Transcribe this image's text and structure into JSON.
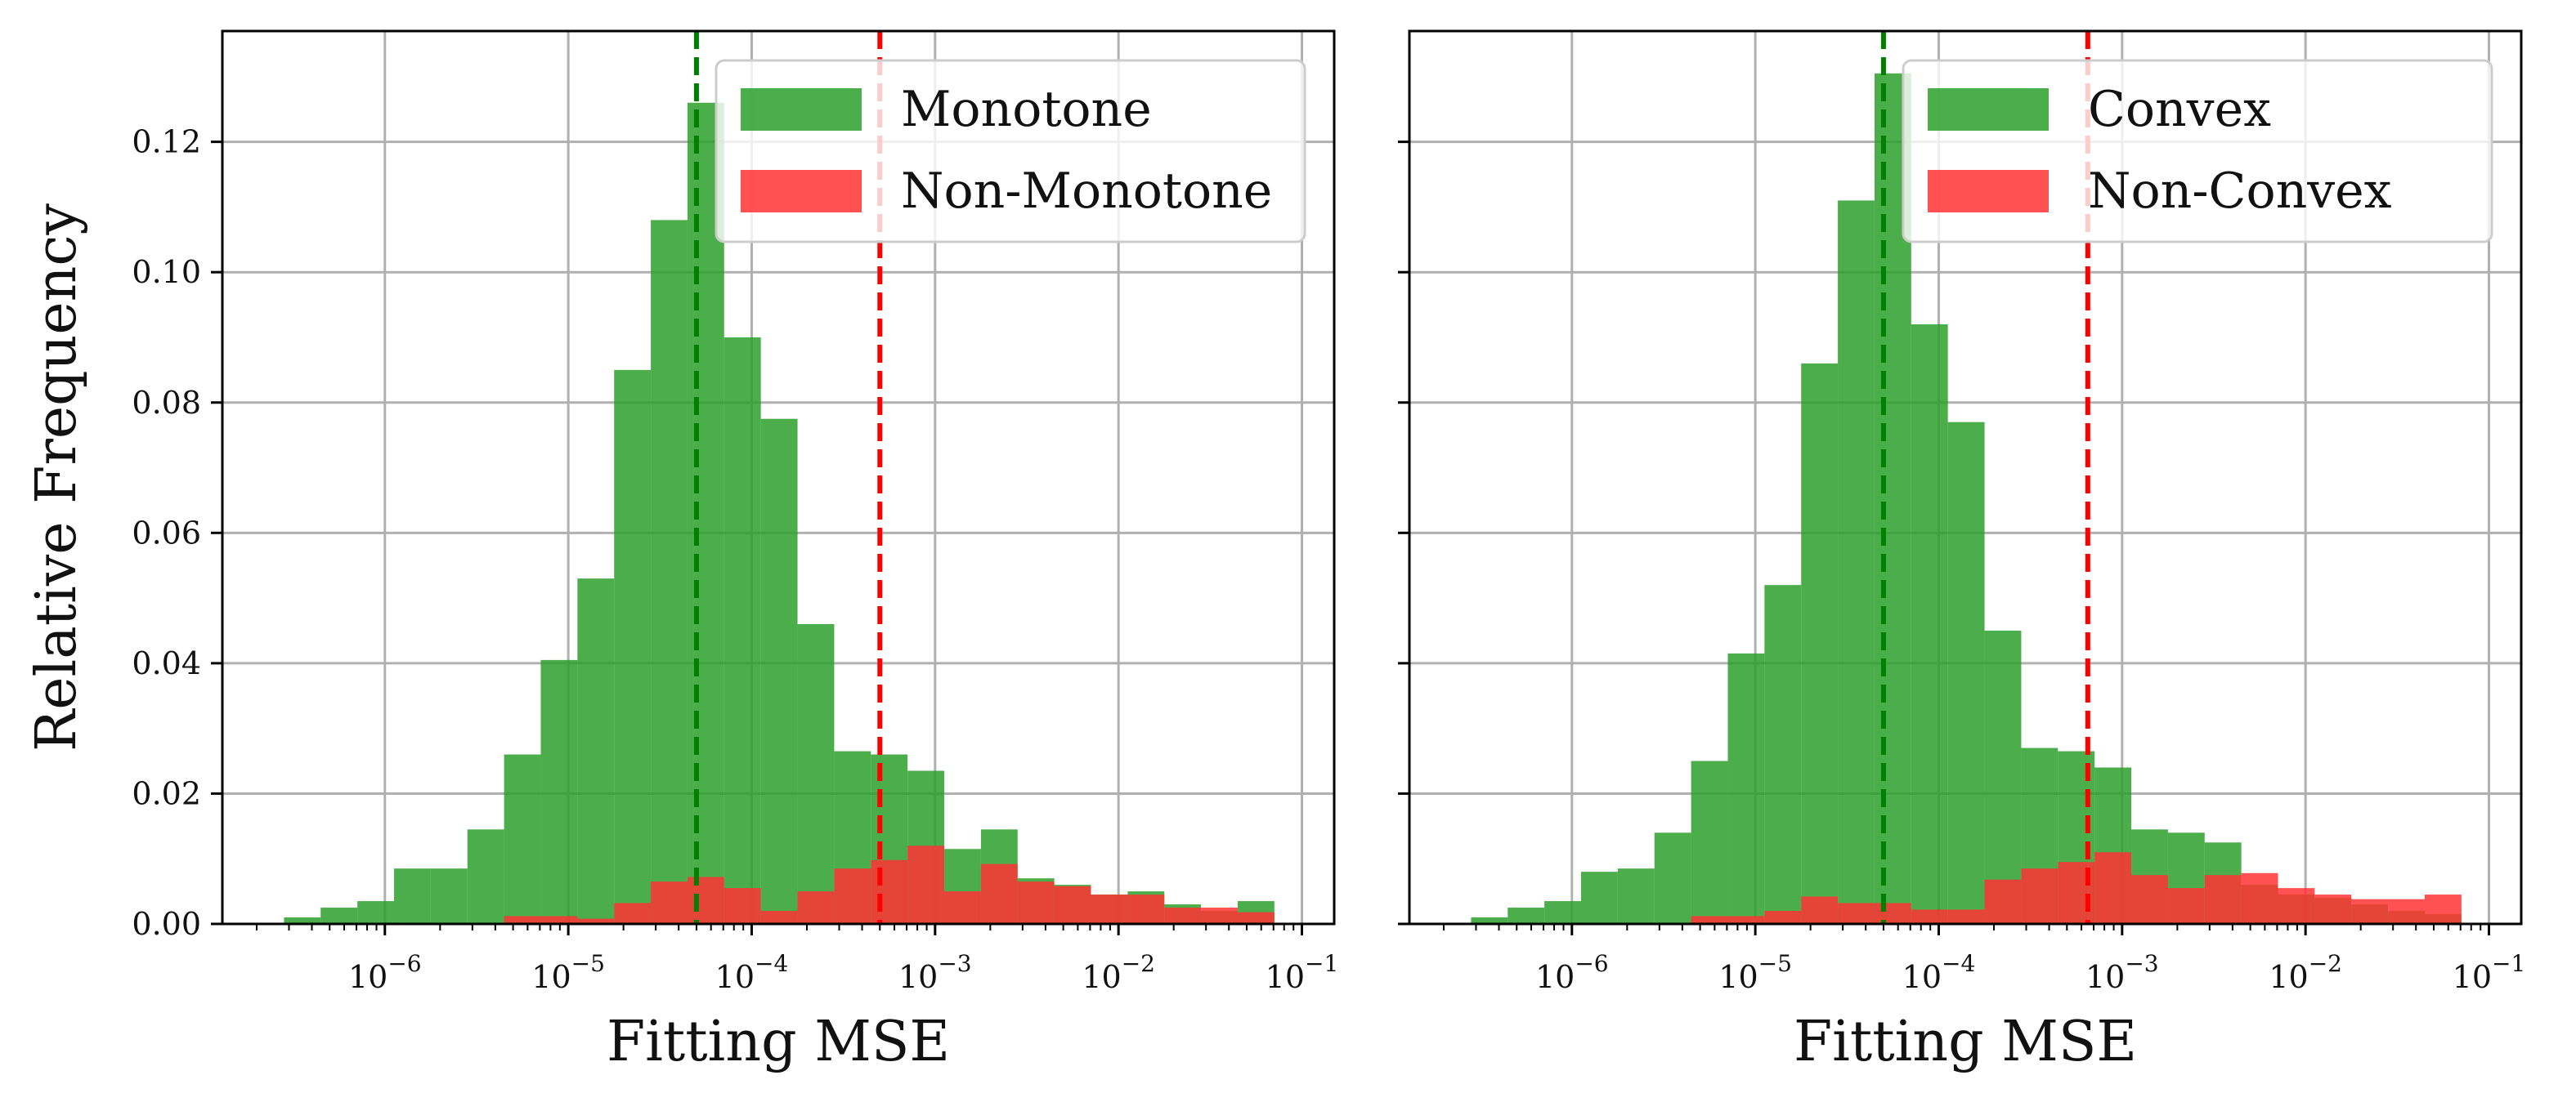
{
  "chart_data": [
    {
      "type": "histogram",
      "xlabel": "Fitting MSE",
      "ylabel": "Relative Frequency",
      "xscale": "log",
      "xlim": [
        1.3e-07,
        0.15
      ],
      "ylim": [
        0,
        0.137
      ],
      "yticks": [
        0.0,
        0.02,
        0.04,
        0.06,
        0.08,
        0.1,
        0.12
      ],
      "ytick_labels": [
        "0.00",
        "0.02",
        "0.04",
        "0.06",
        "0.08",
        "0.10",
        "0.12"
      ],
      "xtick_exponents": [
        -6,
        -5,
        -4,
        -3,
        -2,
        -1
      ],
      "xtick_base": "10",
      "grid": true,
      "legend_position": "upper right",
      "bin_edges_log10": [
        -6.55,
        -6.35,
        -6.15,
        -5.95,
        -5.75,
        -5.55,
        -5.35,
        -5.15,
        -4.95,
        -4.75,
        -4.55,
        -4.35,
        -4.15,
        -3.95,
        -3.75,
        -3.55,
        -3.35,
        -3.15,
        -2.95,
        -2.75,
        -2.55,
        -2.35,
        -2.15,
        -1.95,
        -1.75,
        -1.55,
        -1.35,
        -1.15
      ],
      "series": [
        {
          "name": "Monotone",
          "color": "#2ca02c",
          "values": [
            0.001,
            0.0025,
            0.0035,
            0.0085,
            0.0085,
            0.0145,
            0.026,
            0.0405,
            0.053,
            0.085,
            0.108,
            0.126,
            0.09,
            0.0775,
            0.046,
            0.0265,
            0.026,
            0.0235,
            0.0115,
            0.0145,
            0.007,
            0.006,
            0.0045,
            0.005,
            0.003,
            0.002,
            0.0035
          ]
        },
        {
          "name": "Non-Monotone",
          "color": "#ff3333",
          "values": [
            0,
            0,
            0,
            0,
            0,
            0,
            0.0012,
            0.0012,
            0.0008,
            0.0032,
            0.0065,
            0.0072,
            0.0055,
            0.002,
            0.005,
            0.0085,
            0.0098,
            0.012,
            0.005,
            0.0092,
            0.0065,
            0.0058,
            0.0045,
            0.0045,
            0.0025,
            0.0025,
            0.0018
          ]
        }
      ],
      "vlines": [
        {
          "x": 5e-05,
          "color": "#008000",
          "series": "Monotone"
        },
        {
          "x": 0.0005,
          "color": "#ff0000",
          "series": "Non-Monotone"
        }
      ]
    },
    {
      "type": "histogram",
      "xlabel": "Fitting MSE",
      "ylabel": "",
      "xscale": "log",
      "xlim": [
        1.3e-07,
        0.15
      ],
      "ylim": [
        0,
        0.137
      ],
      "yticks": [
        0.0,
        0.02,
        0.04,
        0.06,
        0.08,
        0.1,
        0.12
      ],
      "ytick_labels": [],
      "xtick_exponents": [
        -6,
        -5,
        -4,
        -3,
        -2,
        -1
      ],
      "xtick_base": "10",
      "grid": true,
      "legend_position": "upper right",
      "bin_edges_log10": [
        -6.55,
        -6.35,
        -6.15,
        -5.95,
        -5.75,
        -5.55,
        -5.35,
        -5.15,
        -4.95,
        -4.75,
        -4.55,
        -4.35,
        -4.15,
        -3.95,
        -3.75,
        -3.55,
        -3.35,
        -3.15,
        -2.95,
        -2.75,
        -2.55,
        -2.35,
        -2.15,
        -1.95,
        -1.75,
        -1.55,
        -1.35,
        -1.15
      ],
      "series": [
        {
          "name": "Convex",
          "color": "#2ca02c",
          "values": [
            0.001,
            0.0025,
            0.0035,
            0.008,
            0.0085,
            0.014,
            0.025,
            0.0415,
            0.052,
            0.086,
            0.111,
            0.1305,
            0.092,
            0.077,
            0.045,
            0.027,
            0.0265,
            0.024,
            0.0145,
            0.014,
            0.0125,
            0.006,
            0.0045,
            0.004,
            0.003,
            0.002,
            0.0015
          ]
        },
        {
          "name": "Non-Convex",
          "color": "#ff3333",
          "values": [
            0,
            0,
            0,
            0,
            0,
            0,
            0.0012,
            0.0012,
            0.002,
            0.0042,
            0.0032,
            0.0032,
            0.0022,
            0.0022,
            0.0068,
            0.0085,
            0.0095,
            0.011,
            0.0075,
            0.0055,
            0.0075,
            0.0078,
            0.0055,
            0.0045,
            0.0038,
            0.0038,
            0.0045
          ]
        }
      ],
      "vlines": [
        {
          "x": 5e-05,
          "color": "#008000",
          "series": "Convex"
        },
        {
          "x": 0.00065,
          "color": "#ff0000",
          "series": "Non-Convex"
        }
      ]
    }
  ]
}
